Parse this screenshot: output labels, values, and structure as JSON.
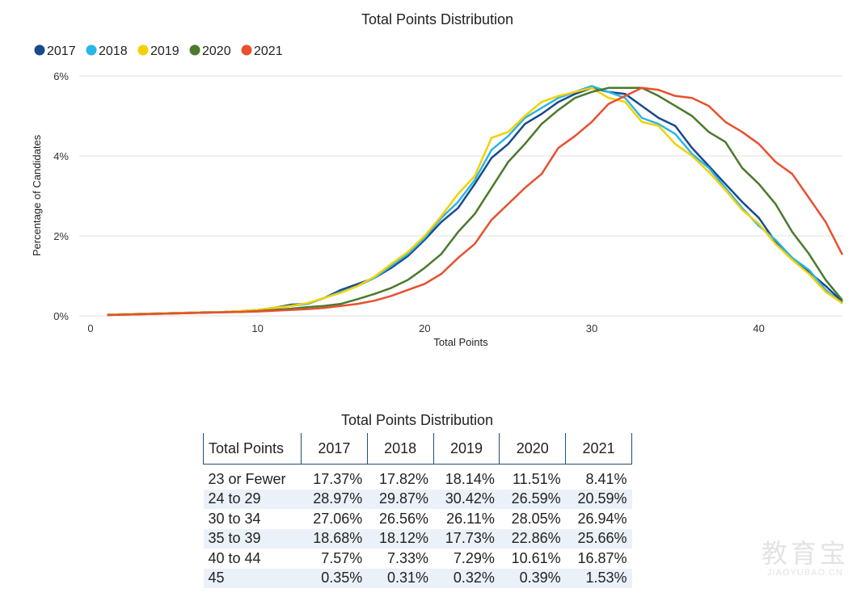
{
  "chart_data": {
    "type": "line",
    "title": "Total Points Distribution",
    "xlabel": "Total Points",
    "ylabel": "Percentage of Candidates",
    "xlim": [
      0,
      45
    ],
    "ylim": [
      0,
      6
    ],
    "x_ticks": [
      "0",
      "10",
      "20",
      "30",
      "40"
    ],
    "y_ticks": [
      "0%",
      "2%",
      "4%",
      "6%"
    ],
    "grid": "horizontal",
    "legend_position": "top-left",
    "x": [
      1,
      2,
      3,
      4,
      5,
      6,
      7,
      8,
      9,
      10,
      11,
      12,
      13,
      14,
      15,
      16,
      17,
      18,
      19,
      20,
      21,
      22,
      23,
      24,
      25,
      26,
      27,
      28,
      29,
      30,
      31,
      32,
      33,
      34,
      35,
      36,
      37,
      38,
      39,
      40,
      41,
      42,
      43,
      44,
      45
    ],
    "series": [
      {
        "name": "2017",
        "color": "#1a4a8a",
        "values": [
          0.03,
          0.04,
          0.05,
          0.06,
          0.07,
          0.08,
          0.09,
          0.1,
          0.12,
          0.15,
          0.2,
          0.28,
          0.3,
          0.45,
          0.65,
          0.8,
          0.95,
          1.2,
          1.5,
          1.9,
          2.35,
          2.7,
          3.3,
          3.95,
          4.3,
          4.8,
          5.05,
          5.35,
          5.55,
          5.7,
          5.6,
          5.55,
          5.25,
          4.95,
          4.75,
          4.2,
          3.75,
          3.3,
          2.85,
          2.45,
          1.85,
          1.45,
          1.1,
          0.75,
          0.35
        ]
      },
      {
        "name": "2018",
        "color": "#29b6e8",
        "values": [
          0.03,
          0.04,
          0.05,
          0.06,
          0.07,
          0.08,
          0.09,
          0.1,
          0.12,
          0.15,
          0.2,
          0.25,
          0.3,
          0.45,
          0.6,
          0.75,
          0.95,
          1.25,
          1.55,
          1.95,
          2.45,
          2.85,
          3.4,
          4.15,
          4.5,
          4.95,
          5.2,
          5.45,
          5.6,
          5.75,
          5.6,
          5.45,
          4.95,
          4.8,
          4.55,
          4.05,
          3.7,
          3.2,
          2.7,
          2.25,
          1.9,
          1.45,
          1.15,
          0.65,
          0.31
        ]
      },
      {
        "name": "2019",
        "color": "#f5d000",
        "values": [
          0.03,
          0.04,
          0.05,
          0.06,
          0.07,
          0.08,
          0.09,
          0.1,
          0.12,
          0.15,
          0.2,
          0.25,
          0.32,
          0.45,
          0.58,
          0.75,
          0.98,
          1.3,
          1.6,
          2.0,
          2.5,
          3.05,
          3.5,
          4.45,
          4.6,
          5.0,
          5.35,
          5.5,
          5.6,
          5.7,
          5.45,
          5.35,
          4.85,
          4.75,
          4.3,
          4.0,
          3.6,
          3.15,
          2.65,
          2.3,
          1.8,
          1.4,
          1.05,
          0.6,
          0.32
        ]
      },
      {
        "name": "2020",
        "color": "#4a7a2c",
        "values": [
          0.02,
          0.03,
          0.04,
          0.05,
          0.06,
          0.07,
          0.08,
          0.09,
          0.1,
          0.12,
          0.15,
          0.18,
          0.22,
          0.25,
          0.3,
          0.42,
          0.55,
          0.7,
          0.9,
          1.2,
          1.55,
          2.1,
          2.55,
          3.2,
          3.85,
          4.3,
          4.8,
          5.15,
          5.45,
          5.6,
          5.7,
          5.7,
          5.7,
          5.5,
          5.25,
          5.0,
          4.6,
          4.35,
          3.7,
          3.3,
          2.8,
          2.1,
          1.55,
          0.9,
          0.39
        ]
      },
      {
        "name": "2021",
        "color": "#e8502f",
        "values": [
          0.02,
          0.03,
          0.04,
          0.05,
          0.06,
          0.07,
          0.08,
          0.09,
          0.1,
          0.11,
          0.13,
          0.15,
          0.17,
          0.2,
          0.25,
          0.3,
          0.38,
          0.5,
          0.65,
          0.8,
          1.05,
          1.45,
          1.8,
          2.4,
          2.8,
          3.2,
          3.55,
          4.2,
          4.5,
          4.85,
          5.3,
          5.5,
          5.7,
          5.65,
          5.5,
          5.45,
          5.25,
          4.85,
          4.6,
          4.3,
          3.85,
          3.55,
          2.95,
          2.35,
          1.53
        ]
      }
    ]
  },
  "table": {
    "title": "Total Points Distribution",
    "headers": [
      "Total Points",
      "2017",
      "2018",
      "2019",
      "2020",
      "2021"
    ],
    "rows": [
      [
        "23 or Fewer",
        "17.37%",
        "17.82%",
        "18.14%",
        "11.51%",
        "8.41%"
      ],
      [
        "24 to 29",
        "28.97%",
        "29.87%",
        "30.42%",
        "26.59%",
        "20.59%"
      ],
      [
        "30 to 34",
        "27.06%",
        "26.56%",
        "26.11%",
        "28.05%",
        "26.94%"
      ],
      [
        "35 to 39",
        "18.68%",
        "18.12%",
        "17.73%",
        "22.86%",
        "25.66%"
      ],
      [
        "40 to 44",
        "7.57%",
        "7.33%",
        "7.29%",
        "10.61%",
        "16.87%"
      ],
      [
        "45",
        "0.35%",
        "0.31%",
        "0.32%",
        "0.39%",
        "1.53%"
      ]
    ]
  },
  "watermark": {
    "main": "教育宝",
    "sub": "JIAOYUBAO.CN"
  }
}
